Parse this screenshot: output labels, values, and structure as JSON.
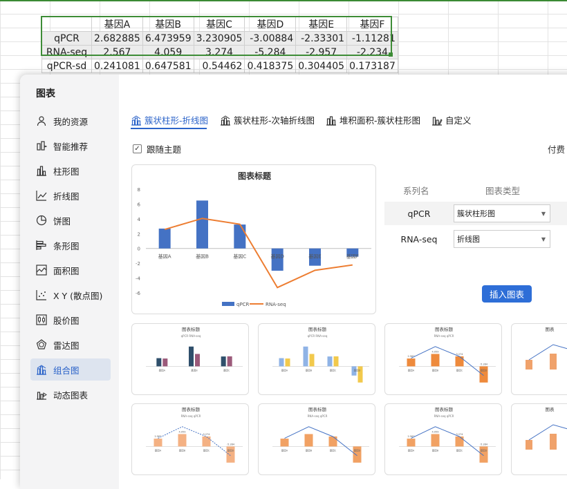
{
  "sheet": {
    "headers": [
      "基因A",
      "基因B",
      "基因C",
      "基因D",
      "基因E",
      "基因F"
    ],
    "rows": [
      {
        "label": "qPCR",
        "values": [
          "2.682885",
          "6.473959",
          "3.230905",
          "-3.00884",
          "-2.33301",
          "-1.11281"
        ]
      },
      {
        "label": "RNA-seq",
        "values": [
          "2.567",
          "4.059",
          "3.274",
          "-5.284",
          "-2.957",
          "-2.234"
        ]
      },
      {
        "label": "qPCR-sd",
        "values": [
          "0.241081",
          "0.647581",
          "0.54462",
          "0.418375",
          "0.304405",
          "0.173187"
        ]
      }
    ]
  },
  "dialog": {
    "title": "图表",
    "sidebar": [
      {
        "label": "我的资源",
        "icon": "user-icon"
      },
      {
        "label": "智能推荐",
        "icon": "smart-icon"
      },
      {
        "label": "柱形图",
        "icon": "bar-chart-icon"
      },
      {
        "label": "折线图",
        "icon": "line-chart-icon"
      },
      {
        "label": "饼图",
        "icon": "pie-chart-icon"
      },
      {
        "label": "条形图",
        "icon": "hbar-chart-icon"
      },
      {
        "label": "面积图",
        "icon": "area-chart-icon"
      },
      {
        "label": "X Y (散点图)",
        "icon": "scatter-chart-icon"
      },
      {
        "label": "股价图",
        "icon": "stock-chart-icon"
      },
      {
        "label": "雷达图",
        "icon": "radar-chart-icon"
      },
      {
        "label": "组合图",
        "icon": "combo-chart-icon",
        "active": true
      },
      {
        "label": "动态图表",
        "icon": "dynamic-chart-icon"
      }
    ],
    "tabs": [
      {
        "label": "簇状柱形-折线图",
        "active": true
      },
      {
        "label": "簇状柱形-次轴折线图"
      },
      {
        "label": "堆积面积-簇状柱形图"
      },
      {
        "label": "自定义"
      }
    ],
    "follow_theme": "跟随主题",
    "paid_label": "付费",
    "series_header_name": "系列名",
    "series_header_type": "图表类型",
    "series": [
      {
        "name": "qPCR",
        "type": "簇状柱形图"
      },
      {
        "name": "RNA-seq",
        "type": "折线图"
      }
    ],
    "insert_label": "插入图表"
  },
  "chart_data": [
    {
      "type": "bar",
      "title": "图表标题",
      "categories": [
        "基因A",
        "基因B",
        "基因C",
        "基因D",
        "基因E",
        "基因F"
      ],
      "series": [
        {
          "name": "qPCR",
          "kind": "bar",
          "values": [
            2.682885,
            6.473959,
            3.230905,
            -3.00884,
            -2.33301,
            -1.11281
          ]
        },
        {
          "name": "RNA-seq",
          "kind": "line",
          "values": [
            2.567,
            4.059,
            3.274,
            -5.284,
            -2.957,
            -2.234
          ]
        }
      ],
      "ylim": [
        -6,
        8
      ],
      "yticks": [
        8,
        6,
        4,
        2,
        0,
        -2,
        -4,
        -6
      ],
      "legend": "bottom",
      "colors": {
        "bar": "#4472c4",
        "line": "#ed7d31"
      }
    }
  ],
  "thumbnails": [
    {
      "title": "图表标题",
      "legend": [
        "qPCR",
        "RNA-seq"
      ],
      "categories": [
        "基因A",
        "基因B",
        "基因C"
      ],
      "style": "dual-bar-dark"
    },
    {
      "title": "图表标题",
      "legend": [
        "qPCR",
        "RNA-seq"
      ],
      "categories": [
        "基因A",
        "基因B",
        "基因C",
        "基因D"
      ],
      "style": "dual-bar-light"
    },
    {
      "title": "图表标题",
      "legend": [
        "RNA-seq",
        "qPCR"
      ],
      "categories": [
        "基因A",
        "基因B",
        "基因C",
        "基因D"
      ],
      "labels": [
        "2.567",
        "4.059",
        "3.274",
        "-5.284"
      ],
      "style": "bar-line-orange"
    },
    {
      "title": "图表",
      "style": "partial"
    },
    {
      "title": "图表标题",
      "legend": [
        "RNA-seq",
        "qPCR"
      ],
      "categories": [
        "基因A",
        "基因B",
        "基因C",
        "基因D"
      ],
      "labels": [
        "2.567",
        "4.059",
        "3.274",
        "-5.284"
      ],
      "style": "bar-dashed-light"
    },
    {
      "title": "图表标题",
      "legend": [
        "RNA-seq",
        "qPCR"
      ],
      "categories": [
        "基因A",
        "基因B",
        "基因C",
        "基因D"
      ],
      "style": "bar-gradient"
    },
    {
      "title": "图表标题",
      "legend": [
        "RNA-seq",
        "qPCR"
      ],
      "categories": [
        "基因A",
        "基因B",
        "基因C",
        "基因D"
      ],
      "labels": [
        "2.567",
        "4.059",
        "3.274",
        "-5.284"
      ],
      "style": "bar-gradient-labels"
    },
    {
      "title": "图表",
      "style": "partial"
    }
  ]
}
